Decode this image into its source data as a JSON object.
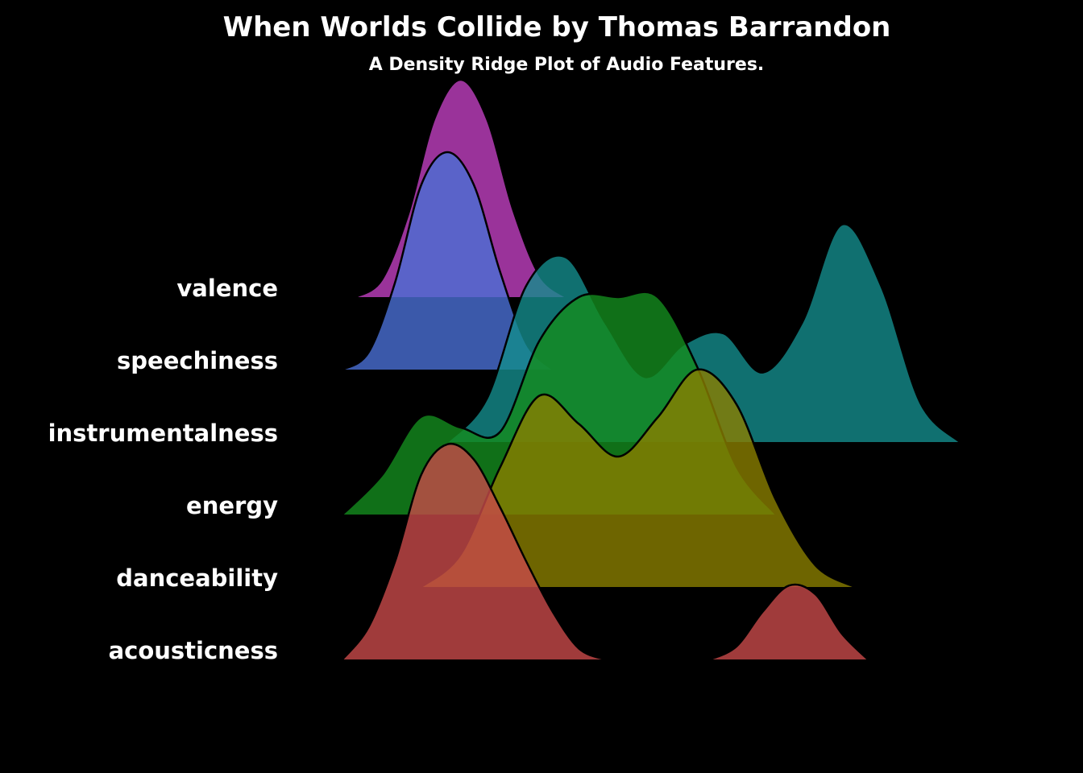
{
  "chart_data": {
    "type": "density_ridge",
    "title": "When Worlds Collide by Thomas Barrandon",
    "subtitle": "A Density Ridge Plot of Audio Features.",
    "xlabel": "",
    "ylabel": "",
    "grid": false,
    "legend": "none",
    "background": "#000000",
    "categories": [
      "acousticness",
      "danceability",
      "energy",
      "instrumentalness",
      "speechiness",
      "valence"
    ],
    "series": [
      {
        "name": "acousticness",
        "color": "#C84A4A",
        "x": [
          0.0,
          0.04,
          0.08,
          0.12,
          0.16,
          0.2,
          0.24,
          0.28,
          0.32,
          0.36,
          0.4,
          0.44,
          0.48,
          0.52,
          0.56,
          0.6,
          0.64,
          0.68,
          0.72,
          0.76,
          0.8,
          0.84,
          0.88,
          0.92,
          0.96,
          1.0,
          1.04
        ],
        "density": [
          0.0,
          0.15,
          0.45,
          0.85,
          0.99,
          0.92,
          0.7,
          0.45,
          0.22,
          0.05,
          0.0,
          null,
          null,
          null,
          0.0,
          0.06,
          0.22,
          0.34,
          0.3,
          0.12,
          0.0,
          null,
          null,
          null,
          null,
          null,
          null
        ]
      },
      {
        "name": "danceability",
        "color": "#8A7E00",
        "x": [
          0.12,
          0.18,
          0.24,
          0.3,
          0.36,
          0.42,
          0.48,
          0.54,
          0.6,
          0.66,
          0.72,
          0.78,
          0.84
        ],
        "density": [
          0.0,
          0.15,
          0.55,
          0.88,
          0.75,
          0.6,
          0.78,
          1.0,
          0.84,
          0.4,
          0.1,
          0.0,
          null
        ]
      },
      {
        "name": "energy",
        "color": "#148C1E",
        "x": [
          0.0,
          0.06,
          0.12,
          0.18,
          0.24,
          0.3,
          0.36,
          0.42,
          0.48,
          0.54,
          0.6,
          0.66,
          0.72
        ],
        "density": [
          0.0,
          0.18,
          0.45,
          0.4,
          0.38,
          0.8,
          1.0,
          1.0,
          1.0,
          0.68,
          0.22,
          0.0,
          null
        ]
      },
      {
        "name": "instrumentalness",
        "color": "#148C8C",
        "x": [
          0.16,
          0.22,
          0.28,
          0.34,
          0.4,
          0.46,
          0.52,
          0.58,
          0.64,
          0.7,
          0.76,
          0.82,
          0.88,
          0.94
        ],
        "density": [
          0.0,
          0.2,
          0.72,
          0.85,
          0.55,
          0.3,
          0.45,
          0.5,
          0.32,
          0.55,
          1.0,
          0.72,
          0.18,
          0.0
        ]
      },
      {
        "name": "speechiness",
        "color": "#4A6FD4",
        "x": [
          0.0,
          0.04,
          0.08,
          0.12,
          0.16,
          0.2,
          0.24,
          0.28,
          0.32,
          0.36,
          0.4
        ],
        "density": [
          0.0,
          0.08,
          0.4,
          0.85,
          1.0,
          0.85,
          0.45,
          0.12,
          0.0,
          null,
          null
        ]
      },
      {
        "name": "valence",
        "color": "#C040C0",
        "x": [
          0.02,
          0.06,
          0.1,
          0.14,
          0.18,
          0.22,
          0.26,
          0.3,
          0.34,
          0.38,
          0.42
        ],
        "density": [
          0.0,
          0.08,
          0.38,
          0.82,
          1.0,
          0.82,
          0.4,
          0.1,
          0.0,
          null,
          null
        ]
      }
    ]
  }
}
